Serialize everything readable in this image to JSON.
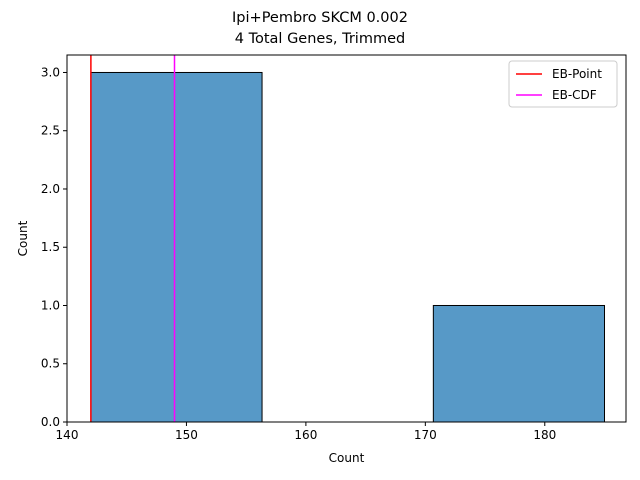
{
  "chart_data": {
    "type": "bar",
    "title_lines": [
      "Ipi+Pembro SKCM 0.002",
      "4 Total Genes, Trimmed"
    ],
    "xlabel": "Count",
    "ylabel": "Count",
    "xlim": [
      140.0,
      186.8
    ],
    "ylim": [
      0,
      3.15
    ],
    "x_ticks": [
      140,
      150,
      160,
      170,
      180
    ],
    "y_ticks": [
      0.0,
      0.5,
      1.0,
      1.5,
      2.0,
      2.5,
      3.0
    ],
    "bins": [
      {
        "x0": 142.0,
        "x1": 156.33,
        "count": 3
      },
      {
        "x0": 156.33,
        "x1": 170.67,
        "count": 0
      },
      {
        "x0": 170.67,
        "x1": 185.0,
        "count": 1
      }
    ],
    "bar_color": "#5799c7",
    "vlines": [
      {
        "name": "EB-Point",
        "x": 142.0,
        "color": "#ff0000"
      },
      {
        "name": "EB-CDF",
        "x": 149.0,
        "color": "#ff00ff"
      }
    ],
    "legend_position": "upper right",
    "grid": false
  }
}
